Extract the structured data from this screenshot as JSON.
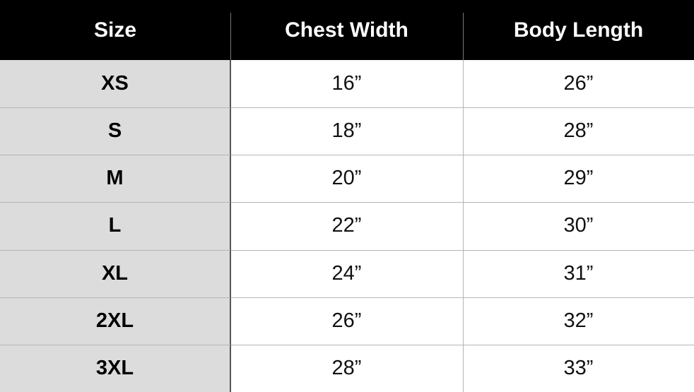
{
  "table": {
    "columns": [
      "Size",
      "Chest Width",
      "Body Length"
    ],
    "rows": [
      [
        "XS",
        "16”",
        "26”"
      ],
      [
        "S",
        "18”",
        "28”"
      ],
      [
        "M",
        "20”",
        "29”"
      ],
      [
        "L",
        "22”",
        "30”"
      ],
      [
        "XL",
        "24”",
        "31”"
      ],
      [
        "2XL",
        "26”",
        "32”"
      ],
      [
        "3XL",
        "28”",
        "33”"
      ]
    ]
  }
}
